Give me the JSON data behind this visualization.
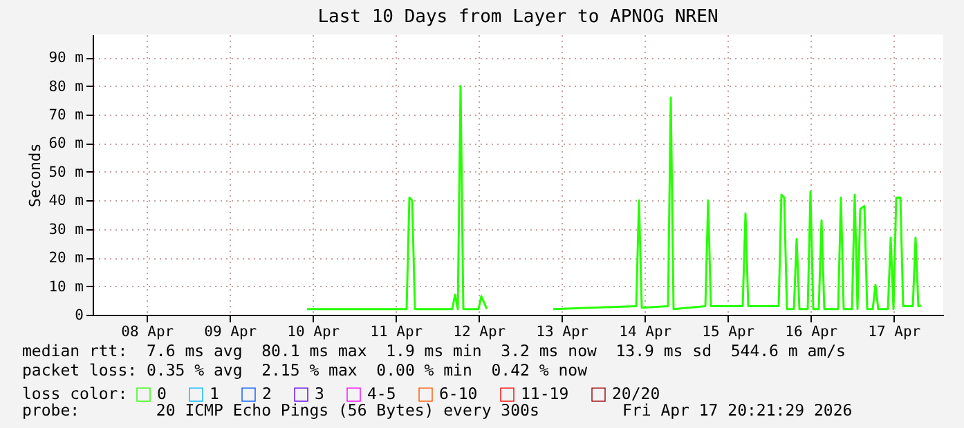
{
  "chart_data": {
    "type": "line",
    "title": "Last 10 Days from Layer to APNOG NREN",
    "ylabel": "Seconds",
    "x": [
      "2026-04-10T10:21",
      "2026-04-11T15:09",
      "2026-04-11T15:57",
      "2026-04-11T16:45",
      "2026-04-11T17:33",
      "2026-04-12T04:21",
      "2026-04-12T05:09",
      "2026-04-12T05:57",
      "2026-04-12T06:45",
      "2026-04-12T07:33",
      "2026-04-12T11:57",
      "2026-04-12T12:45",
      "2026-04-12T14:21",
      "2026-04-13T00:00",
      "2026-04-13T09:33",
      "2026-04-14T09:33",
      "2026-04-14T10:21",
      "2026-04-14T11:09",
      "2026-04-14T18:45",
      "2026-04-14T19:33",
      "2026-04-14T20:21",
      "2026-04-15T05:33",
      "2026-04-15T06:21",
      "2026-04-15T07:09",
      "2026-04-15T16:21",
      "2026-04-15T17:09",
      "2026-04-15T17:57",
      "2026-04-16T02:45",
      "2026-04-16T03:33",
      "2026-04-16T04:21",
      "2026-04-16T05:09",
      "2026-04-16T07:09",
      "2026-04-16T07:57",
      "2026-04-16T08:45",
      "2026-04-16T11:09",
      "2026-04-16T11:57",
      "2026-04-16T12:45",
      "2026-04-16T14:21",
      "2026-04-16T15:09",
      "2026-04-16T15:57",
      "2026-04-16T19:57",
      "2026-04-16T20:45",
      "2026-04-16T21:33",
      "2026-04-16T23:57",
      "2026-04-17T00:45",
      "2026-04-17T01:33",
      "2026-04-17T02:21",
      "2026-04-17T03:33",
      "2026-04-17T04:21",
      "2026-04-17T05:57",
      "2026-04-17T06:45",
      "2026-04-17T07:33",
      "2026-04-17T10:21",
      "2026-04-17T11:09",
      "2026-04-17T11:57",
      "2026-04-17T12:45",
      "2026-04-17T13:57",
      "2026-04-17T14:45",
      "2026-04-17T17:33",
      "2026-04-17T18:21",
      "2026-04-17T19:09",
      "2026-04-17T19:57"
    ],
    "series": [
      {
        "name": "0",
        "color": "#26ff00",
        "values": [
          2,
          2,
          41,
          40,
          2,
          2,
          7,
          2,
          80,
          2,
          2,
          6.5,
          2,
          null,
          2,
          3,
          40,
          2.5,
          3,
          76,
          2,
          3,
          40,
          3,
          3,
          35.5,
          3,
          3,
          42,
          41,
          2,
          2,
          26.5,
          2,
          2,
          43,
          2,
          2,
          33,
          2,
          2,
          41,
          2,
          2,
          42,
          2,
          37,
          38,
          2,
          2,
          10.5,
          2,
          2,
          27,
          2,
          41,
          41,
          3,
          3,
          27,
          3,
          3.2
        ]
      },
      {
        "name": "1",
        "color": "#00b8ff",
        "values": [
          null,
          null,
          null,
          null,
          null,
          null,
          null,
          null,
          null,
          null,
          null,
          null,
          null,
          null,
          null,
          null,
          null,
          null,
          null,
          null,
          null,
          null,
          null,
          null,
          null,
          null,
          null,
          null,
          null,
          null,
          null,
          null,
          null,
          null,
          null,
          null,
          null,
          null,
          null,
          null,
          null,
          null,
          null,
          null,
          null,
          null,
          null,
          null,
          null,
          null,
          null,
          null,
          null,
          null,
          null,
          null,
          null,
          null,
          null,
          null,
          null,
          null
        ]
      },
      {
        "name": "2",
        "color": "#0059ff",
        "values": [
          null,
          null,
          null,
          null,
          null,
          null,
          null,
          null,
          null,
          null,
          null,
          null,
          null,
          null,
          null,
          null,
          null,
          null,
          null,
          null,
          null,
          null,
          null,
          null,
          null,
          null,
          null,
          null,
          null,
          null,
          null,
          null,
          null,
          null,
          null,
          null,
          null,
          null,
          null,
          null,
          null,
          null,
          null,
          null,
          null,
          null,
          null,
          null,
          null,
          null,
          null,
          null,
          null,
          null,
          null,
          null,
          null,
          null,
          null,
          null,
          null,
          null
        ]
      },
      {
        "name": "3",
        "color": "#5e00ff",
        "values": [
          null,
          null,
          null,
          null,
          null,
          null,
          null,
          null,
          null,
          null,
          null,
          null,
          null,
          null,
          null,
          null,
          null,
          null,
          null,
          null,
          null,
          null,
          null,
          null,
          null,
          null,
          null,
          null,
          null,
          null,
          null,
          null,
          null,
          null,
          null,
          null,
          null,
          null,
          null,
          null,
          null,
          null,
          null,
          null,
          null,
          null,
          null,
          null,
          null,
          null,
          null,
          null,
          null,
          null,
          null,
          null,
          null,
          null,
          null,
          null,
          null,
          null
        ]
      },
      {
        "name": "4-5",
        "color": "#ff00ff",
        "values": [
          null,
          null,
          null,
          null,
          null,
          null,
          null,
          null,
          null,
          null,
          null,
          null,
          null,
          null,
          null,
          null,
          null,
          null,
          null,
          null,
          null,
          null,
          null,
          null,
          null,
          null,
          null,
          null,
          null,
          null,
          null,
          null,
          null,
          null,
          null,
          null,
          null,
          null,
          null,
          null,
          null,
          null,
          null,
          null,
          null,
          null,
          null,
          null,
          null,
          null,
          null,
          null,
          null,
          null,
          null,
          null,
          null,
          null,
          null,
          null,
          null,
          null
        ]
      },
      {
        "name": "6-10",
        "color": "#ff5500",
        "values": [
          null,
          null,
          null,
          null,
          null,
          null,
          null,
          null,
          null,
          null,
          null,
          null,
          null,
          null,
          null,
          null,
          null,
          null,
          null,
          null,
          null,
          null,
          null,
          null,
          null,
          null,
          null,
          null,
          null,
          null,
          null,
          null,
          null,
          null,
          null,
          null,
          null,
          null,
          null,
          null,
          null,
          null,
          null,
          null,
          null,
          null,
          null,
          null,
          null,
          null,
          null,
          null,
          null,
          null,
          null,
          null,
          null,
          null,
          null,
          null,
          null,
          null
        ]
      },
      {
        "name": "11-19",
        "color": "#ff0000",
        "values": [
          null,
          null,
          null,
          null,
          null,
          null,
          null,
          null,
          null,
          null,
          null,
          null,
          null,
          null,
          null,
          null,
          null,
          null,
          null,
          null,
          null,
          null,
          null,
          null,
          null,
          null,
          null,
          null,
          null,
          null,
          null,
          null,
          null,
          null,
          null,
          null,
          null,
          null,
          null,
          null,
          null,
          null,
          null,
          null,
          null,
          null,
          null,
          null,
          null,
          null,
          null,
          null,
          null,
          null,
          null,
          null,
          null,
          null,
          null,
          null,
          null,
          null
        ]
      },
      {
        "name": "20/20",
        "color": "#a10000",
        "values": [
          null,
          null,
          null,
          null,
          null,
          null,
          null,
          null,
          null,
          null,
          null,
          null,
          null,
          null,
          null,
          null,
          null,
          null,
          null,
          null,
          null,
          null,
          null,
          null,
          null,
          null,
          null,
          null,
          null,
          null,
          null,
          null,
          null,
          null,
          null,
          null,
          null,
          null,
          null,
          null,
          null,
          null,
          null,
          null,
          null,
          null,
          null,
          null,
          null,
          null,
          null,
          null,
          null,
          null,
          null,
          null,
          null,
          null,
          null,
          null,
          null,
          null
        ]
      }
    ],
    "xlim": [
      "2026-04-07T20:21",
      "2026-04-18T02:21"
    ],
    "xticks": [
      {
        "value": "2026-04-08T12:00",
        "label": "08 Apr"
      },
      {
        "value": "2026-04-09T12:00",
        "label": "09 Apr"
      },
      {
        "value": "2026-04-10T12:00",
        "label": "10 Apr"
      },
      {
        "value": "2026-04-11T12:00",
        "label": "11 Apr"
      },
      {
        "value": "2026-04-12T12:00",
        "label": "12 Apr"
      },
      {
        "value": "2026-04-13T12:00",
        "label": "13 Apr"
      },
      {
        "value": "2026-04-14T12:00",
        "label": "14 Apr"
      },
      {
        "value": "2026-04-15T12:00",
        "label": "15 Apr"
      },
      {
        "value": "2026-04-16T12:00",
        "label": "16 Apr"
      },
      {
        "value": "2026-04-17T12:00",
        "label": "17 Apr"
      }
    ],
    "ylim": [
      0,
      98
    ],
    "yticks": [
      0,
      {
        "value": 10,
        "label": "10 m"
      },
      {
        "value": 20,
        "label": "20 m"
      },
      {
        "value": 30,
        "label": "30 m"
      },
      {
        "value": 40,
        "label": "40 m"
      },
      {
        "value": 50,
        "label": "50 m"
      },
      {
        "value": 60,
        "label": "60 m"
      },
      {
        "value": 70,
        "label": "70 m"
      },
      {
        "value": 80,
        "label": "80 m"
      },
      {
        "value": 90,
        "label": "90 m"
      }
    ],
    "grid": true,
    "legend": "bottom",
    "legend_title": "loss color:",
    "marker": "none",
    "line_style": "solid",
    "annotations": [
      "median rtt:  7.6 ms avg  80.1 ms max  1.9 ms min  3.2 ms now  13.9 ms sd  544.6 m am/s",
      "packet loss: 0.35 % avg  2.15 % max  0.00 % min  0.42 % now",
      "probe:        20 ICMP Echo Pings (56 Bytes) every 300s",
      "Fri Apr 17 20:21:29 2026"
    ]
  }
}
